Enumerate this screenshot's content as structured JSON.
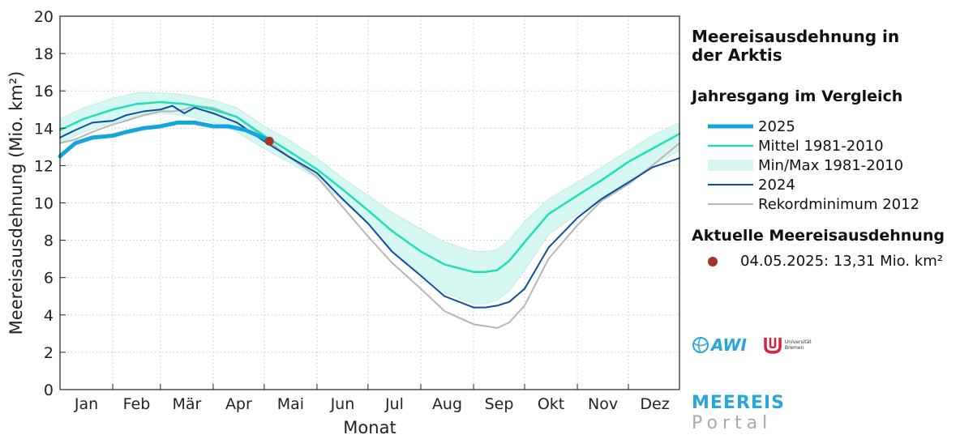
{
  "colors": {
    "y2025": "#12a5de",
    "mean": "#1fe0b2",
    "band": "#d6f7f2",
    "band_edge": "#b5ece3",
    "y2024": "#0d4f9c",
    "y2012": "#b6b6b6",
    "current_dot": "#a3342a",
    "grid": "#c4c4c4"
  },
  "sidebar": {
    "title": "Meereisausdehnung in\nder Arktis",
    "legend_title": "Jahresgang im Vergleich",
    "current_title": "Aktuelle Meereisausdehnung",
    "current_value": "04.05.2025:  13,31 Mio. km²"
  },
  "logos": {
    "awi": "AWI",
    "uni_line1": "Universität",
    "uni_line2": "Bremen"
  },
  "portal": {
    "line1": "MEEREIS",
    "line2": "Portal"
  },
  "chart_data": {
    "type": "line",
    "title": "Meereisausdehnung in der Arktis",
    "xlabel": "Monat",
    "ylabel": "Meereisausdehnung (Mio. km²)",
    "ylim": [
      0,
      20
    ],
    "yticks": [
      0,
      2,
      4,
      6,
      8,
      10,
      12,
      14,
      16,
      18,
      20
    ],
    "xlim": [
      1,
      365
    ],
    "months": [
      "Jan",
      "Feb",
      "Mär",
      "Apr",
      "Mai",
      "Jun",
      "Jul",
      "Aug",
      "Sep",
      "Okt",
      "Nov",
      "Dez"
    ],
    "grid": true,
    "legend_position": "right",
    "series": [
      {
        "name": "2025",
        "key": "y2025",
        "width": 5,
        "x": [
          1,
          10,
          20,
          32,
          40,
          50,
          60,
          70,
          80,
          91,
          100,
          110,
          120,
          124
        ],
        "y": [
          12.5,
          13.2,
          13.5,
          13.6,
          13.8,
          14.0,
          14.1,
          14.3,
          14.3,
          14.1,
          14.1,
          13.9,
          13.5,
          13.31
        ]
      },
      {
        "name": "Mittel 1981-2010",
        "key": "mean",
        "width": 2.5,
        "x": [
          1,
          15,
          32,
          46,
          60,
          74,
          91,
          105,
          121,
          135,
          152,
          166,
          182,
          196,
          213,
          227,
          244,
          251,
          258,
          265,
          274,
          288,
          305,
          319,
          335,
          349,
          365
        ],
        "y": [
          13.9,
          14.5,
          15.0,
          15.3,
          15.4,
          15.3,
          15.0,
          14.6,
          13.6,
          12.8,
          11.8,
          10.8,
          9.6,
          8.5,
          7.4,
          6.7,
          6.3,
          6.3,
          6.4,
          6.9,
          7.9,
          9.4,
          10.4,
          11.2,
          12.2,
          12.9,
          13.7
        ]
      },
      {
        "name": "Min/Max 1981-2010",
        "key": "band",
        "type": "band",
        "x": [
          1,
          15,
          32,
          46,
          60,
          74,
          91,
          105,
          121,
          135,
          152,
          166,
          182,
          196,
          213,
          227,
          244,
          251,
          258,
          265,
          274,
          288,
          305,
          319,
          335,
          349,
          365
        ],
        "min": [
          13.2,
          13.8,
          14.3,
          14.6,
          14.8,
          14.7,
          14.3,
          13.8,
          12.9,
          12.2,
          11.3,
          10.2,
          8.9,
          7.5,
          6.2,
          5.2,
          4.6,
          4.6,
          4.8,
          5.3,
          6.4,
          8.3,
          9.4,
          10.2,
          11.2,
          12.0,
          12.8
        ],
        "max": [
          14.5,
          15.1,
          15.6,
          15.9,
          15.9,
          15.8,
          15.5,
          15.1,
          14.1,
          13.4,
          12.4,
          11.4,
          10.4,
          9.5,
          8.6,
          7.9,
          7.4,
          7.4,
          7.5,
          8.0,
          9.0,
          10.2,
          11.1,
          11.9,
          12.8,
          13.6,
          14.3
        ]
      },
      {
        "name": "2024",
        "key": "y2024",
        "width": 2,
        "x": [
          1,
          10,
          20,
          32,
          40,
          50,
          60,
          67,
          74,
          80,
          91,
          105,
          121,
          135,
          152,
          166,
          182,
          196,
          213,
          227,
          244,
          251,
          258,
          265,
          274,
          288,
          305,
          319,
          335,
          349,
          365
        ],
        "y": [
          13.5,
          13.9,
          14.3,
          14.4,
          14.7,
          14.9,
          15.0,
          15.2,
          14.8,
          15.1,
          14.8,
          14.3,
          13.3,
          12.5,
          11.6,
          10.3,
          8.9,
          7.4,
          6.1,
          5.0,
          4.4,
          4.4,
          4.5,
          4.7,
          5.4,
          7.6,
          9.2,
          10.2,
          11.1,
          11.9,
          12.4
        ]
      },
      {
        "name": "Rekordminimum 2012",
        "key": "y2012",
        "width": 2,
        "x": [
          1,
          10,
          20,
          32,
          40,
          50,
          60,
          67,
          74,
          80,
          91,
          105,
          121,
          135,
          152,
          166,
          182,
          196,
          213,
          227,
          244,
          251,
          258,
          265,
          274,
          288,
          305,
          319,
          335,
          349,
          365
        ],
        "y": [
          13.2,
          13.4,
          13.8,
          14.2,
          14.4,
          14.7,
          14.9,
          14.9,
          15.0,
          15.2,
          15.1,
          14.6,
          13.5,
          12.5,
          11.4,
          9.9,
          8.2,
          6.8,
          5.4,
          4.2,
          3.5,
          3.4,
          3.3,
          3.6,
          4.5,
          7.0,
          8.8,
          10.1,
          11.0,
          12.0,
          13.2
        ]
      }
    ],
    "current_point": {
      "label": "04.05.2025",
      "x": 124,
      "y": 13.31
    }
  }
}
